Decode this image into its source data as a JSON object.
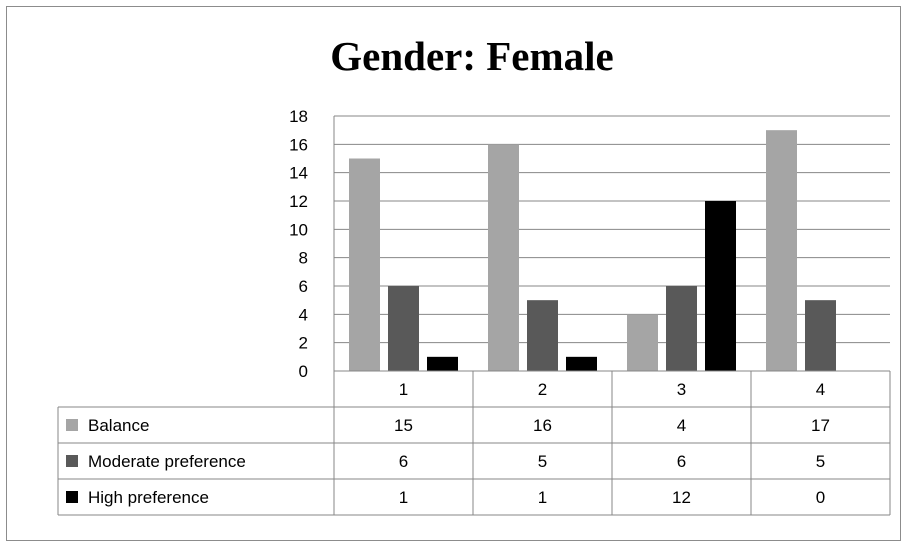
{
  "chart_data": {
    "type": "bar",
    "title": "Gender: Female",
    "categories": [
      "1",
      "2",
      "3",
      "4"
    ],
    "series": [
      {
        "name": "Balance",
        "values": [
          15,
          16,
          4,
          17
        ],
        "color": "#a5a5a5"
      },
      {
        "name": "Moderate preference",
        "values": [
          6,
          5,
          6,
          5
        ],
        "color": "#595959"
      },
      {
        "name": "High preference",
        "values": [
          1,
          1,
          12,
          0
        ],
        "color": "#000000"
      }
    ],
    "ylim": [
      0,
      18
    ],
    "yticks": [
      "0",
      "2",
      "4",
      "6",
      "8",
      "10",
      "12",
      "14",
      "16",
      "18"
    ],
    "grid": true,
    "legend": "data-table"
  }
}
